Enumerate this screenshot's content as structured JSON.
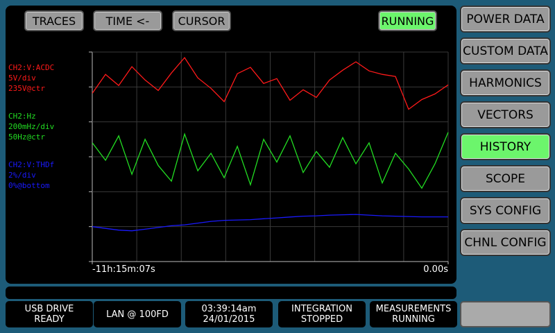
{
  "top_buttons": [
    "TRACES",
    "TIME <-",
    "CURSOR"
  ],
  "run_status": "RUNNING",
  "menu": [
    "POWER DATA",
    "CUSTOM DATA",
    "HARMONICS",
    "VECTORS",
    "HISTORY",
    "SCOPE",
    "SYS CONFIG",
    "CHNL CONFIG"
  ],
  "active_menu": 4,
  "chart_data": {
    "type": "line",
    "x": [
      -40500,
      -39000,
      -37500,
      -36000,
      -34500,
      -33000,
      -31500,
      -30000,
      -28500,
      -27000,
      -25500,
      -24000,
      -22500,
      -21000,
      -19500,
      -18000,
      -16500,
      -15000,
      -13500,
      -12000,
      -10500,
      -9000,
      -7500,
      -6000,
      -4500,
      -3000,
      -1500,
      0
    ],
    "xlim": [
      -40507,
      0
    ],
    "xticks": [
      {
        "value": -40507,
        "label": "-11h:15m:07s"
      },
      {
        "value": 0,
        "label": "0.00s"
      }
    ],
    "series": [
      {
        "name": "CH2:V:ACDC",
        "scale_label": "5V/div",
        "ref_label": "235V@ctr",
        "color": "#ff1a1a",
        "ylim": [
          220,
          250
        ],
        "values": [
          244.1,
          246.8,
          245.2,
          247.9,
          246.0,
          244.5,
          247.0,
          249.2,
          246.3,
          244.8,
          242.9,
          246.9,
          247.8,
          245.5,
          246.2,
          243.1,
          244.6,
          243.5,
          246.0,
          247.4,
          248.6,
          247.3,
          246.8,
          246.5,
          241.8,
          243.2,
          244.0,
          245.3
        ]
      },
      {
        "name": "CH2:Hz",
        "scale_label": "200mHz/div",
        "ref_label": "50Hz@ctr",
        "color": "#22dd22",
        "ylim": [
          49.4,
          50.6
        ],
        "values": [
          50.08,
          49.98,
          50.12,
          49.9,
          50.1,
          49.95,
          49.86,
          50.13,
          49.92,
          50.02,
          49.88,
          50.06,
          49.84,
          50.1,
          49.97,
          50.12,
          49.91,
          50.03,
          49.94,
          50.11,
          49.96,
          50.08,
          49.85,
          50.02,
          49.93,
          49.82,
          49.96,
          50.14
        ]
      },
      {
        "name": "CH2:V:THDf",
        "scale_label": "2%/div",
        "ref_label": "0%@bottom",
        "color": "#1a1aff",
        "ylim": [
          0,
          12
        ],
        "values": [
          2.0,
          1.9,
          1.8,
          1.76,
          1.85,
          1.95,
          2.05,
          2.1,
          2.2,
          2.3,
          2.36,
          2.38,
          2.4,
          2.45,
          2.5,
          2.55,
          2.6,
          2.62,
          2.66,
          2.68,
          2.7,
          2.66,
          2.62,
          2.6,
          2.58,
          2.56,
          2.56,
          2.56
        ]
      }
    ]
  },
  "status_bar": [
    [
      "USB DRIVE",
      "READY"
    ],
    [
      "LAN @ 100FD"
    ],
    [
      "03:39:14am",
      "24/01/2015"
    ],
    [
      "INTEGRATION",
      "STOPPED"
    ],
    [
      "MEASUREMENTS",
      "RUNNING"
    ]
  ]
}
